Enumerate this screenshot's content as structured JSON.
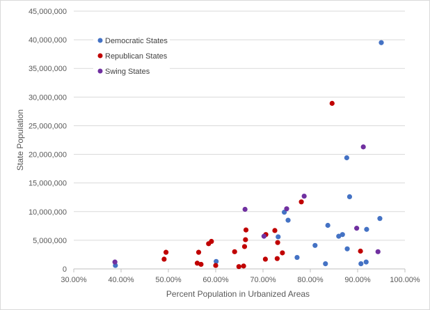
{
  "chart_data": {
    "type": "scatter",
    "title": "",
    "xlabel": "Percent Population in Urbanized Areas",
    "ylabel": "State Population",
    "xlim": [
      0.3,
      1.0
    ],
    "ylim": [
      0,
      45000000
    ],
    "x_ticks": [
      {
        "value": 0.3,
        "label": "30.00%"
      },
      {
        "value": 0.4,
        "label": "40.00%"
      },
      {
        "value": 0.5,
        "label": "50.00%"
      },
      {
        "value": 0.6,
        "label": "60.00%"
      },
      {
        "value": 0.7,
        "label": "70.00%"
      },
      {
        "value": 0.8,
        "label": "80.00%"
      },
      {
        "value": 0.9,
        "label": "90.00%"
      },
      {
        "value": 1.0,
        "label": "100.00%"
      }
    ],
    "y_ticks": [
      {
        "value": 0,
        "label": "0"
      },
      {
        "value": 5000000,
        "label": "5,000,000"
      },
      {
        "value": 10000000,
        "label": "10,000,000"
      },
      {
        "value": 15000000,
        "label": "15,000,000"
      },
      {
        "value": 20000000,
        "label": "20,000,000"
      },
      {
        "value": 25000000,
        "label": "25,000,000"
      },
      {
        "value": 30000000,
        "label": "30,000,000"
      },
      {
        "value": 35000000,
        "label": "35,000,000"
      },
      {
        "value": 40000000,
        "label": "40,000,000"
      },
      {
        "value": 45000000,
        "label": "45,000,000"
      }
    ],
    "grid": "horizontal",
    "legend_position": "top-left",
    "series": [
      {
        "name": "Democratic States",
        "color": "#4472c4",
        "points": [
          [
            0.388,
            600000
          ],
          [
            0.601,
            1300000
          ],
          [
            0.732,
            5600000
          ],
          [
            0.745,
            9900000
          ],
          [
            0.753,
            8500000
          ],
          [
            0.772,
            2000000
          ],
          [
            0.81,
            4100000
          ],
          [
            0.832,
            900000
          ],
          [
            0.837,
            7600000
          ],
          [
            0.86,
            5700000
          ],
          [
            0.868,
            6000000
          ],
          [
            0.877,
            19400000
          ],
          [
            0.878,
            3500000
          ],
          [
            0.883,
            12600000
          ],
          [
            0.907,
            900000
          ],
          [
            0.918,
            1200000
          ],
          [
            0.919,
            6900000
          ],
          [
            0.947,
            8800000
          ],
          [
            0.95,
            39500000
          ]
        ]
      },
      {
        "name": "Republican States",
        "color": "#c00000",
        "points": [
          [
            0.491,
            1700000
          ],
          [
            0.495,
            2900000
          ],
          [
            0.561,
            1000000
          ],
          [
            0.564,
            2900000
          ],
          [
            0.569,
            800000
          ],
          [
            0.585,
            4400000
          ],
          [
            0.591,
            4800000
          ],
          [
            0.6,
            600000
          ],
          [
            0.64,
            3000000
          ],
          [
            0.649,
            400000
          ],
          [
            0.659,
            500000
          ],
          [
            0.661,
            3900000
          ],
          [
            0.663,
            5100000
          ],
          [
            0.664,
            6800000
          ],
          [
            0.705,
            1700000
          ],
          [
            0.706,
            6000000
          ],
          [
            0.725,
            6700000
          ],
          [
            0.73,
            1800000
          ],
          [
            0.731,
            4600000
          ],
          [
            0.741,
            2800000
          ],
          [
            0.781,
            11700000
          ],
          [
            0.846,
            28900000
          ],
          [
            0.906,
            3100000
          ]
        ]
      },
      {
        "name": "Swing States",
        "color": "#7030a0",
        "points": [
          [
            0.387,
            1200000
          ],
          [
            0.662,
            10400000
          ],
          [
            0.702,
            5700000
          ],
          [
            0.75,
            10500000
          ],
          [
            0.787,
            12700000
          ],
          [
            0.898,
            7100000
          ],
          [
            0.912,
            21300000
          ],
          [
            0.943,
            3000000
          ]
        ]
      }
    ]
  }
}
